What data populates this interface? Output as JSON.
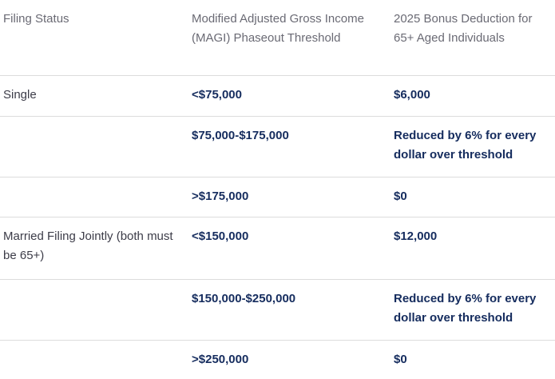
{
  "table": {
    "headers": [
      "Filing Status",
      "Modified Adjusted Gross Income (MAGI) Phaseout Threshold",
      "2025 Bonus Deduction for 65+ Aged Individuals"
    ],
    "rows": [
      [
        "Single",
        "<$75,000",
        "$6,000"
      ],
      [
        "",
        "$75,000-$175,000",
        "Reduced by 6% for every dollar over threshold"
      ],
      [
        "",
        ">$175,000",
        "$0"
      ],
      [
        "Married Filing Jointly (both must be 65+)",
        "<$150,000",
        "$12,000"
      ],
      [
        "",
        "$150,000-$250,000",
        "Reduced by 6% for every dollar over threshold"
      ],
      [
        "",
        ">$250,000",
        "$0"
      ]
    ]
  },
  "colors": {
    "header_text": "#6a6a74",
    "status_text": "#3c3c48",
    "value_text": "#152c5e",
    "divider": "#dcdcdc"
  }
}
